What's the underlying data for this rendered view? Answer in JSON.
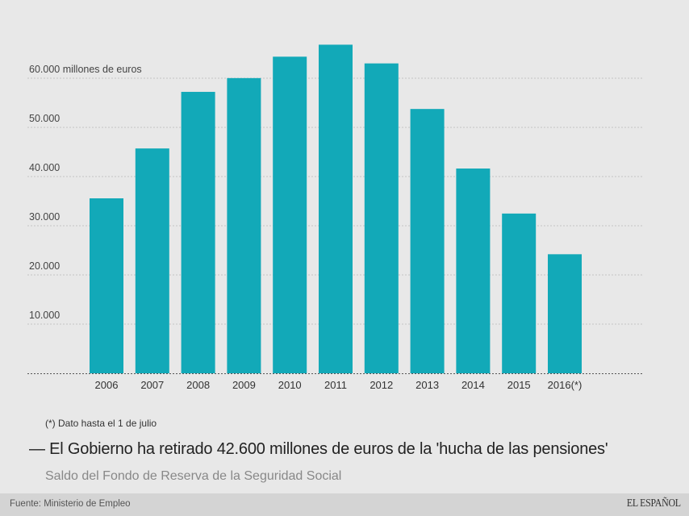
{
  "chart_data": {
    "type": "bar",
    "title": "El Gobierno ha retirado 42.600 millones de euros de la 'hucha de las pensiones'",
    "subtitle": "Saldo del Fondo de Reserva de la Seguridad Social",
    "xlabel": "",
    "ylabel": "millones de euros",
    "categories": [
      "2006",
      "2007",
      "2008",
      "2009",
      "2010",
      "2011",
      "2012",
      "2013",
      "2014",
      "2015",
      "2016(*)"
    ],
    "values": [
      35575,
      45716,
      57223,
      60022,
      64375,
      66815,
      63008,
      53744,
      41634,
      32481,
      24207
    ],
    "ylim": [
      0,
      70000
    ],
    "yticks": [
      10000,
      20000,
      30000,
      40000,
      50000,
      60000
    ],
    "ytick_labels": [
      "10.000",
      "20.000",
      "30.000",
      "40.000",
      "50.000",
      "60.000 millones de euros"
    ],
    "grid": true,
    "legend": "none",
    "bar_color": "#12a9b8",
    "note": "(*) Dato hasta el 1 de julio"
  },
  "header": {
    "title_dash": "—",
    "title": "El Gobierno ha retirado 42.600 millones de euros de la 'hucha de las pensiones'",
    "subtitle": "Saldo del Fondo de Reserva de la Seguridad Social"
  },
  "note": "(*) Dato hasta el 1 de julio",
  "footer": {
    "source": "Fuente: Ministerio de Empleo",
    "brand": "EL ESPAÑOL"
  }
}
